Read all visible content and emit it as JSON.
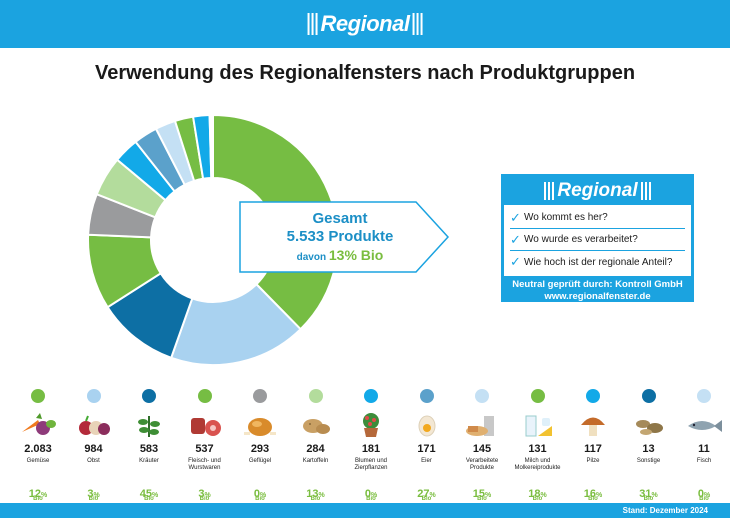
{
  "header": {
    "logo_text": "Regional"
  },
  "title": "Verwendung des Regionalfensters nach Produktgruppen",
  "callout": {
    "line1": "Gesamt",
    "line2": "5.533 Produkte",
    "line3_prefix": "davon",
    "line3_bio": "13% Bio"
  },
  "badge": {
    "logo_text": "Regional",
    "check_mark": "✓",
    "questions": [
      "Wo kommt es her?",
      "Wo wurde es verarbeitet?",
      "Wie hoch ist der regionale Anteil?"
    ],
    "footer_line1": "Neutral geprüft durch: Kontroll GmbH",
    "footer_line2": "www.regionalfenster.de"
  },
  "footer": {
    "stand": "Stand: Dezember 2024"
  },
  "bio_label": "Bio",
  "percent_sign": "%",
  "chart_data": {
    "type": "pie",
    "total": 5533,
    "categories": [
      {
        "name": "Gemüse",
        "count_label": "2.083",
        "value": 2083,
        "bio_pct": 12,
        "color": "#76bd43",
        "icon": "vegetables-icon"
      },
      {
        "name": "Obst",
        "count_label": "984",
        "value": 984,
        "bio_pct": 3,
        "color": "#a9d2f0",
        "icon": "fruit-icon"
      },
      {
        "name": "Kräuter",
        "count_label": "583",
        "value": 583,
        "bio_pct": 45,
        "color": "#0d6fa4",
        "icon": "herbs-icon"
      },
      {
        "name": "Fleisch- und Wurstwaren",
        "count_label": "537",
        "value": 537,
        "bio_pct": 3,
        "color": "#76bd43",
        "icon": "meat-icon"
      },
      {
        "name": "Geflügel",
        "count_label": "293",
        "value": 293,
        "bio_pct": 0,
        "color": "#9a9b9d",
        "icon": "poultry-icon"
      },
      {
        "name": "Kartoffeln",
        "count_label": "284",
        "value": 284,
        "bio_pct": 13,
        "color": "#b3dc9c",
        "icon": "potato-icon"
      },
      {
        "name": "Blumen und Zierpflanzen",
        "count_label": "181",
        "value": 181,
        "bio_pct": 0,
        "color": "#12a9e8",
        "icon": "flower-pot-icon"
      },
      {
        "name": "Eier",
        "count_label": "171",
        "value": 171,
        "bio_pct": 27,
        "color": "#5ba1cb",
        "icon": "egg-icon"
      },
      {
        "name": "Verarbeitete Produkte",
        "count_label": "145",
        "value": 145,
        "bio_pct": 15,
        "color": "#c4e0f4",
        "icon": "processed-food-icon"
      },
      {
        "name": "Milch und Molkereiprodukte",
        "count_label": "131",
        "value": 131,
        "bio_pct": 18,
        "color": "#76bd43",
        "icon": "dairy-icon"
      },
      {
        "name": "Pilze",
        "count_label": "117",
        "value": 117,
        "bio_pct": 16,
        "color": "#12a9e8",
        "icon": "mushroom-icon"
      },
      {
        "name": "Sonstige",
        "count_label": "13",
        "value": 13,
        "bio_pct": 31,
        "color": "#0d6fa4",
        "icon": "misc-food-icon"
      },
      {
        "name": "Fisch",
        "count_label": "11",
        "value": 11,
        "bio_pct": 0,
        "color": "#c4e0f4",
        "icon": "fish-icon"
      }
    ]
  }
}
